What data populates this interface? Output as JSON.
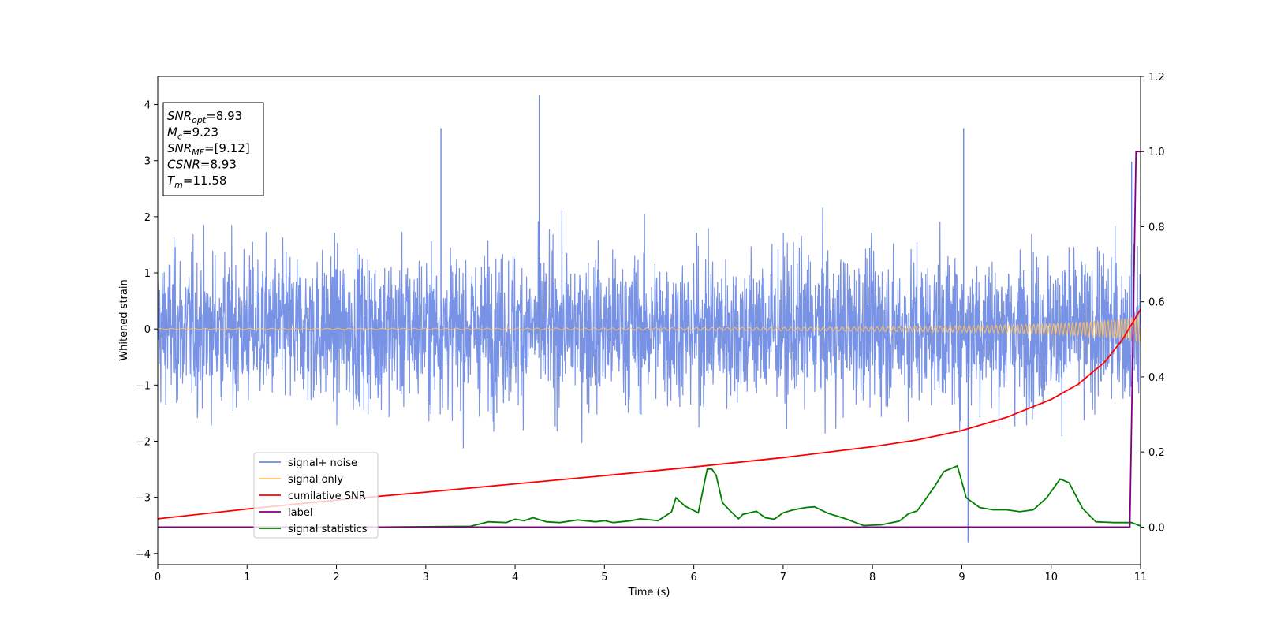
{
  "chart_data": {
    "type": "line",
    "xlabel": "Time (s)",
    "ylabel": "Whitened strain",
    "xlim": [
      0,
      11
    ],
    "ylim": [
      -4.2,
      4.5
    ],
    "y2lim": [
      -0.1,
      1.2
    ],
    "x_ticks": [
      "0",
      "1",
      "2",
      "3",
      "4",
      "5",
      "6",
      "7",
      "8",
      "9",
      "10",
      "11"
    ],
    "y_ticks": [
      "4",
      "3",
      "2",
      "1",
      "0",
      "−1",
      "−2",
      "−3",
      "−4"
    ],
    "y2_ticks": [
      "1.2",
      "1.0",
      "0.8",
      "0.6",
      "0.4",
      "0.2",
      "0.0"
    ],
    "grid": false,
    "legend": {
      "placement": "lower-left",
      "entries": [
        {
          "label": "signal+ noise",
          "color": "#6c8ae4"
        },
        {
          "label": "signal only",
          "color": "#ffc060"
        },
        {
          "label": "cumilative SNR",
          "color": "#ff0000"
        },
        {
          "label": "label",
          "color": "#800080"
        },
        {
          "label": "signal statistics",
          "color": "#008000"
        }
      ]
    },
    "stats_box": {
      "placement": "top-left",
      "lines": [
        {
          "base": "SNR",
          "sub": "opt",
          "rest": "=8.93"
        },
        {
          "base": "M",
          "sub": "c",
          "rest": "=9.23"
        },
        {
          "base": "SNR",
          "sub": "MF",
          "rest": "=[9.12]"
        },
        {
          "base": "CSNR",
          "sub": "",
          "rest": "=8.93"
        },
        {
          "base": "T",
          "sub": "m",
          "rest": "=11.58"
        }
      ]
    },
    "series": [
      {
        "name": "signal+ noise",
        "axis": "left",
        "style": "dense-noise",
        "color": "#6c8ae4",
        "approx_envelope": [
          -3.8,
          4.17
        ],
        "notable_peaks": [
          {
            "x": 4.27,
            "y": 4.17
          },
          {
            "x": 3.17,
            "y": 3.58
          },
          {
            "x": 9.02,
            "y": 3.58
          },
          {
            "x": 9.07,
            "y": -3.8
          },
          {
            "x": 10.9,
            "y": 2.98
          }
        ]
      },
      {
        "name": "signal only",
        "axis": "left",
        "style": "chirp",
        "color": "#ffc060",
        "envelope": {
          "x": [
            0,
            1,
            2,
            3,
            4,
            5,
            6,
            7,
            8,
            9,
            9.5,
            10,
            10.3,
            10.6,
            10.8,
            11
          ],
          "amplitude": [
            0.01,
            0.011,
            0.012,
            0.014,
            0.016,
            0.019,
            0.024,
            0.03,
            0.04,
            0.058,
            0.072,
            0.095,
            0.115,
            0.15,
            0.18,
            0.24
          ]
        }
      },
      {
        "name": "cumilative SNR",
        "axis": "right",
        "color": "#ff0000",
        "x": [
          0,
          1,
          2,
          3,
          4,
          5,
          6,
          7,
          8,
          8.5,
          9,
          9.5,
          10,
          10.3,
          10.6,
          10.8,
          11
        ],
        "values": [
          0.022,
          0.048,
          0.072,
          0.093,
          0.115,
          0.137,
          0.16,
          0.185,
          0.214,
          0.232,
          0.257,
          0.292,
          0.34,
          0.38,
          0.44,
          0.5,
          0.58
        ]
      },
      {
        "name": "label",
        "axis": "right",
        "color": "#800080",
        "x": [
          0,
          10.88,
          10.95,
          11
        ],
        "values": [
          0,
          0,
          1,
          1
        ]
      },
      {
        "name": "signal statistics",
        "axis": "right",
        "color": "#008000",
        "x": [
          0,
          0.5,
          1,
          1.5,
          2,
          2.5,
          3,
          3.5,
          3.7,
          3.9,
          4.0,
          4.1,
          4.2,
          4.35,
          4.5,
          4.7,
          4.9,
          5.0,
          5.1,
          5.3,
          5.4,
          5.6,
          5.75,
          5.8,
          5.9,
          6.05,
          6.15,
          6.2,
          6.25,
          6.32,
          6.4,
          6.5,
          6.55,
          6.7,
          6.8,
          6.9,
          7.0,
          7.1,
          7.25,
          7.35,
          7.5,
          7.7,
          7.9,
          8.1,
          8.3,
          8.4,
          8.5,
          8.6,
          8.7,
          8.8,
          8.95,
          9.05,
          9.2,
          9.35,
          9.5,
          9.65,
          9.8,
          9.95,
          10.1,
          10.2,
          10.35,
          10.5,
          10.7,
          10.9,
          11
        ],
        "values": [
          0.0,
          0.0,
          0.0,
          0.0,
          0.0,
          0.0,
          0.001,
          0.002,
          0.014,
          0.012,
          0.021,
          0.017,
          0.025,
          0.014,
          0.012,
          0.019,
          0.014,
          0.017,
          0.012,
          0.017,
          0.022,
          0.017,
          0.04,
          0.078,
          0.056,
          0.038,
          0.154,
          0.155,
          0.138,
          0.065,
          0.045,
          0.022,
          0.034,
          0.042,
          0.025,
          0.021,
          0.038,
          0.045,
          0.052,
          0.054,
          0.037,
          0.022,
          0.004,
          0.006,
          0.016,
          0.035,
          0.043,
          0.076,
          0.11,
          0.148,
          0.163,
          0.078,
          0.052,
          0.046,
          0.046,
          0.041,
          0.046,
          0.078,
          0.128,
          0.118,
          0.05,
          0.014,
          0.012,
          0.012,
          0.003
        ]
      }
    ]
  }
}
